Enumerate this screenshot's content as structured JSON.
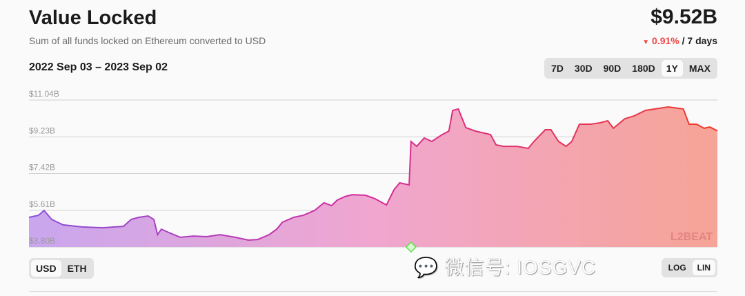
{
  "header": {
    "title": "Value Locked",
    "subtitle": "Sum of all funds locked on Ethereum converted to USD",
    "value": "$9.52B",
    "change": "0.91%",
    "change_period": "/ 7 days",
    "change_direction": "down",
    "range": "2022 Sep 03 – 2023 Sep 02"
  },
  "periods": [
    {
      "label": "7D"
    },
    {
      "label": "30D"
    },
    {
      "label": "90D"
    },
    {
      "label": "180D"
    },
    {
      "label": "1Y",
      "selected": true
    },
    {
      "label": "MAX"
    }
  ],
  "units": [
    {
      "label": "USD",
      "selected": true
    },
    {
      "label": "ETH"
    }
  ],
  "scale": [
    {
      "label": "LOG"
    },
    {
      "label": "LIN",
      "selected": true
    }
  ],
  "watermark": {
    "logo": "L2BEAT",
    "overlay": "微信号: IOSGVC"
  },
  "colors": {
    "negative": "#f04545",
    "line_start": "#8a4fd8",
    "line_mid": "#d62b9a",
    "line_end": "#f03a2a",
    "fill_start": "#c9a6ee",
    "fill_mid": "#f0a6cf",
    "fill_end": "#f6a496",
    "marker": "#5ee04a"
  },
  "chart_data": {
    "type": "area",
    "title": "Value Locked",
    "xlabel": "",
    "ylabel": "",
    "ylim": [
      3.8,
      11.04
    ],
    "y_unit": "B USD",
    "y_ticks": [
      "$3.80B",
      "$5.61B",
      "$7.42B",
      "$9.23B",
      "$11.04B"
    ],
    "grid": true,
    "x_range": [
      "2022-09-03",
      "2023-09-02"
    ],
    "markers": [
      {
        "date": "2023-03-24",
        "shape": "diamond"
      }
    ],
    "points": [
      [
        "2022-09-03",
        5.26
      ],
      [
        "2022-09-08",
        5.36
      ],
      [
        "2022-09-11",
        5.6
      ],
      [
        "2022-09-15",
        5.16
      ],
      [
        "2022-09-21",
        4.89
      ],
      [
        "2022-10-01",
        4.79
      ],
      [
        "2022-10-12",
        4.75
      ],
      [
        "2022-10-23",
        4.82
      ],
      [
        "2022-10-27",
        5.16
      ],
      [
        "2022-10-31",
        5.26
      ],
      [
        "2022-11-05",
        5.33
      ],
      [
        "2022-11-08",
        5.16
      ],
      [
        "2022-11-10",
        4.41
      ],
      [
        "2022-11-12",
        4.68
      ],
      [
        "2022-11-16",
        4.51
      ],
      [
        "2022-11-22",
        4.28
      ],
      [
        "2022-11-29",
        4.34
      ],
      [
        "2022-12-06",
        4.31
      ],
      [
        "2022-12-13",
        4.41
      ],
      [
        "2022-12-21",
        4.28
      ],
      [
        "2022-12-28",
        4.14
      ],
      [
        "2023-01-02",
        4.17
      ],
      [
        "2023-01-08",
        4.41
      ],
      [
        "2023-01-12",
        4.68
      ],
      [
        "2023-01-15",
        5.02
      ],
      [
        "2023-01-21",
        5.26
      ],
      [
        "2023-01-26",
        5.36
      ],
      [
        "2023-02-01",
        5.6
      ],
      [
        "2023-02-06",
        5.98
      ],
      [
        "2023-02-10",
        5.84
      ],
      [
        "2023-02-13",
        6.11
      ],
      [
        "2023-02-17",
        6.28
      ],
      [
        "2023-02-21",
        6.38
      ],
      [
        "2023-02-28",
        6.35
      ],
      [
        "2023-03-05",
        6.18
      ],
      [
        "2023-03-11",
        5.87
      ],
      [
        "2023-03-15",
        6.62
      ],
      [
        "2023-03-18",
        6.96
      ],
      [
        "2023-03-23",
        6.86
      ],
      [
        "2023-03-24",
        9.0
      ],
      [
        "2023-03-27",
        8.76
      ],
      [
        "2023-03-31",
        9.17
      ],
      [
        "2023-04-04",
        9.0
      ],
      [
        "2023-04-09",
        9.31
      ],
      [
        "2023-04-13",
        9.51
      ],
      [
        "2023-04-15",
        10.53
      ],
      [
        "2023-04-18",
        10.6
      ],
      [
        "2023-04-22",
        9.68
      ],
      [
        "2023-04-27",
        9.51
      ],
      [
        "2023-05-05",
        9.34
      ],
      [
        "2023-05-08",
        8.83
      ],
      [
        "2023-05-12",
        8.76
      ],
      [
        "2023-05-19",
        8.76
      ],
      [
        "2023-05-25",
        8.66
      ],
      [
        "2023-05-28",
        9.0
      ],
      [
        "2023-06-03",
        9.58
      ],
      [
        "2023-06-06",
        9.58
      ],
      [
        "2023-06-10",
        9.0
      ],
      [
        "2023-06-14",
        8.76
      ],
      [
        "2023-06-17",
        9.0
      ],
      [
        "2023-06-21",
        9.85
      ],
      [
        "2023-06-27",
        9.85
      ],
      [
        "2023-07-02",
        9.92
      ],
      [
        "2023-07-06",
        10.02
      ],
      [
        "2023-07-09",
        9.65
      ],
      [
        "2023-07-15",
        10.12
      ],
      [
        "2023-07-20",
        10.26
      ],
      [
        "2023-07-26",
        10.53
      ],
      [
        "2023-07-31",
        10.6
      ],
      [
        "2023-08-07",
        10.7
      ],
      [
        "2023-08-15",
        10.6
      ],
      [
        "2023-08-18",
        9.85
      ],
      [
        "2023-08-22",
        9.85
      ],
      [
        "2023-08-26",
        9.65
      ],
      [
        "2023-08-29",
        9.71
      ],
      [
        "2023-09-02",
        9.52
      ]
    ]
  }
}
